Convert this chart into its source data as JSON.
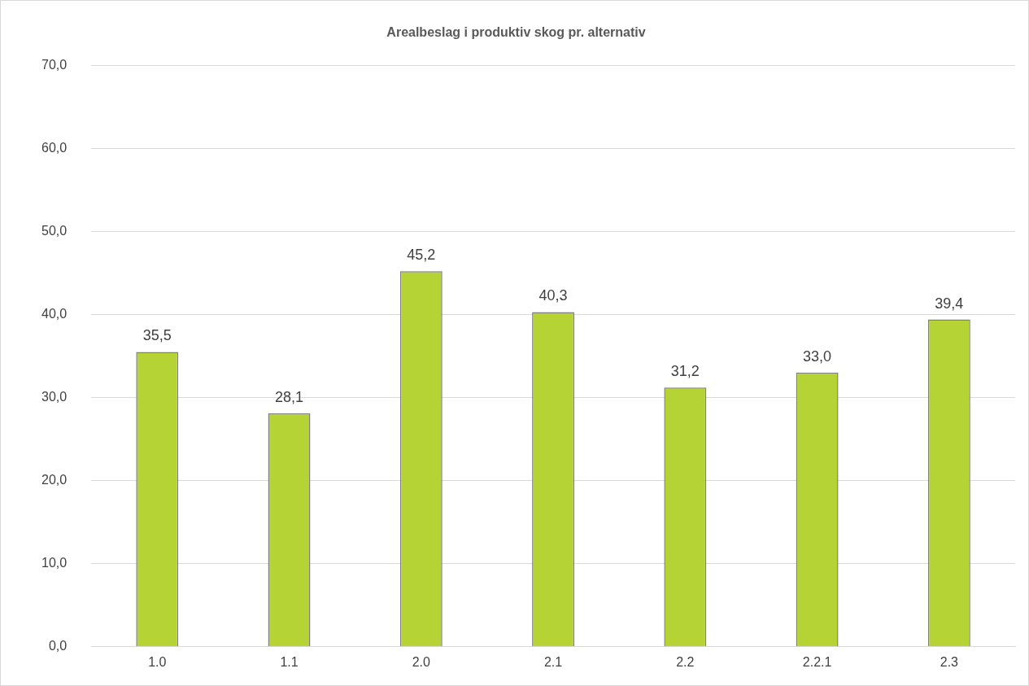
{
  "chart_data": {
    "type": "bar",
    "title": "Arealbeslag i produktiv skog pr. alternativ",
    "categories": [
      "1.0",
      "1.1",
      "2.0",
      "2.1",
      "2.2",
      "2.2.1",
      "2.3"
    ],
    "values": [
      35.5,
      28.1,
      45.2,
      40.3,
      31.2,
      33.0,
      39.4
    ],
    "value_labels": [
      "35,5",
      "28,1",
      "45,2",
      "40,3",
      "31,2",
      "33,0",
      "39,4"
    ],
    "color": "#b5d334",
    "ylim": [
      0,
      70
    ],
    "yticks": [
      {
        "value": 0,
        "label": "0,0"
      },
      {
        "value": 10,
        "label": "10,0"
      },
      {
        "value": 20,
        "label": "20,0"
      },
      {
        "value": 30,
        "label": "30,0"
      },
      {
        "value": 40,
        "label": "40,0"
      },
      {
        "value": 50,
        "label": "50,0"
      },
      {
        "value": 60,
        "label": "60,0"
      },
      {
        "value": 70,
        "label": "70,0"
      }
    ],
    "grid": "y",
    "legend": false
  }
}
